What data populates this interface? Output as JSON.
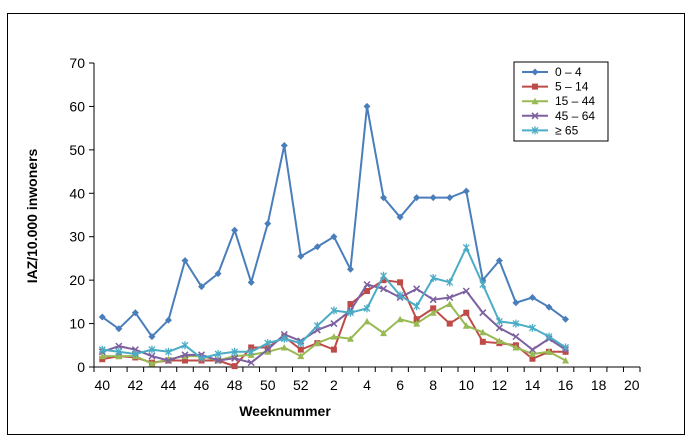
{
  "chart_data": {
    "type": "line",
    "xlabel": "Weeknummer",
    "ylabel": "IAZ/10.000 inwoners",
    "ylim": [
      0,
      70
    ],
    "yticks": [
      "0",
      "10",
      "20",
      "30",
      "40",
      "50",
      "60",
      "70"
    ],
    "xtick_labels": [
      "40",
      "42",
      "44",
      "46",
      "48",
      "50",
      "52",
      "2",
      "4",
      "6",
      "8",
      "10",
      "12",
      "14",
      "16",
      "18",
      "20"
    ],
    "grid": false,
    "legend_position": "top-right",
    "series": [
      {
        "name": "0 – 4",
        "color": "#4a7ebb",
        "marker": "diamond",
        "values": [
          11.5,
          8.8,
          12.5,
          7.0,
          10.8,
          24.5,
          18.5,
          21.5,
          31.5,
          19.5,
          33.0,
          51.0,
          25.5,
          27.7,
          30.0,
          22.5,
          60.0,
          39.0,
          34.5,
          39.0,
          39.0,
          39.0,
          40.5,
          20.0,
          24.5,
          14.8,
          16.0,
          13.8,
          11.0
        ]
      },
      {
        "name": "5 – 14",
        "color": "#be4b48",
        "marker": "square",
        "values": [
          1.8,
          2.5,
          2.2,
          1.0,
          1.5,
          1.5,
          1.5,
          1.5,
          0.2,
          4.5,
          4.5,
          7.0,
          4.0,
          5.5,
          4.0,
          14.5,
          17.5,
          20.0,
          19.5,
          11.0,
          13.5,
          10.0,
          12.5,
          5.8,
          5.5,
          5.0,
          1.9,
          3.5,
          3.5
        ]
      },
      {
        "name": "15 – 44",
        "color": "#98b954",
        "marker": "triangle",
        "values": [
          2.5,
          2.5,
          2.5,
          0.8,
          1.8,
          2.5,
          2.5,
          1.5,
          2.5,
          2.8,
          3.5,
          4.5,
          2.5,
          5.5,
          7.0,
          6.5,
          10.5,
          7.8,
          11.0,
          10.0,
          12.5,
          14.5,
          9.5,
          8.0,
          6.0,
          4.5,
          3.0,
          3.5,
          1.5
        ]
      },
      {
        "name": "45 – 64",
        "color": "#7d60a0",
        "marker": "x",
        "values": [
          3.5,
          4.8,
          4.0,
          2.5,
          1.5,
          2.8,
          2.8,
          1.5,
          2.0,
          1.0,
          4.0,
          7.5,
          6.0,
          8.5,
          10.0,
          13.0,
          19.0,
          18.0,
          16.0,
          18.0,
          15.5,
          16.0,
          17.5,
          12.5,
          9.0,
          7.0,
          4.0,
          6.5,
          4.0
        ]
      },
      {
        "name": "≥ 65",
        "color": "#4bacc6",
        "marker": "asterisk",
        "values": [
          4.0,
          3.5,
          3.0,
          4.0,
          3.5,
          5.0,
          2.0,
          3.0,
          3.5,
          3.5,
          5.5,
          6.5,
          5.5,
          9.5,
          13.0,
          12.5,
          13.5,
          21.0,
          16.5,
          14.0,
          20.5,
          19.5,
          27.5,
          19.0,
          10.5,
          10.0,
          9.0,
          7.0,
          4.5
        ]
      }
    ]
  }
}
